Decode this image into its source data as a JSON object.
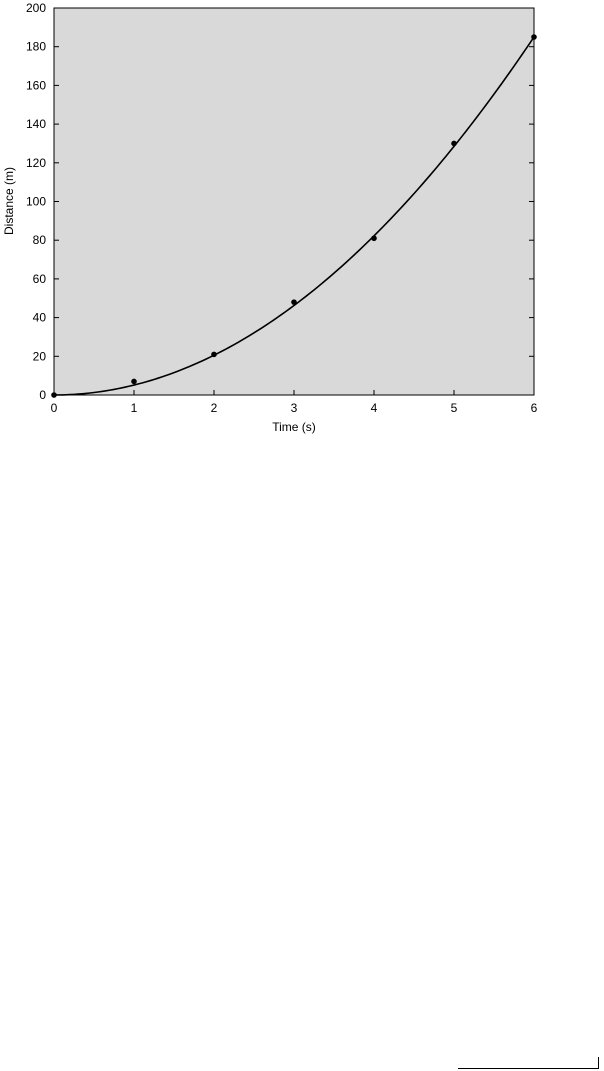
{
  "chart_data": {
    "type": "scatter",
    "title": "",
    "xlabel": "Time (s)",
    "ylabel": "Distance (m)",
    "xlim": [
      0,
      6
    ],
    "ylim": [
      0,
      200
    ],
    "xticks": [
      "0",
      "1",
      "2",
      "3",
      "4",
      "5",
      "6"
    ],
    "yticks": [
      "0",
      "20",
      "40",
      "60",
      "80",
      "100",
      "120",
      "140",
      "160",
      "180",
      "200"
    ],
    "grid": false,
    "legend": "none",
    "background_color": "#d9d9d9",
    "point_color": "#000000",
    "line_color": "#000000",
    "series": [
      {
        "type": "scatter",
        "x": [
          0,
          1,
          2,
          3,
          4,
          5,
          6
        ],
        "y": [
          0,
          7,
          21,
          48,
          81,
          130,
          185
        ]
      },
      {
        "type": "line",
        "fit": "quadratic",
        "coefficients": [
          5.14,
          0
        ]
      }
    ]
  }
}
